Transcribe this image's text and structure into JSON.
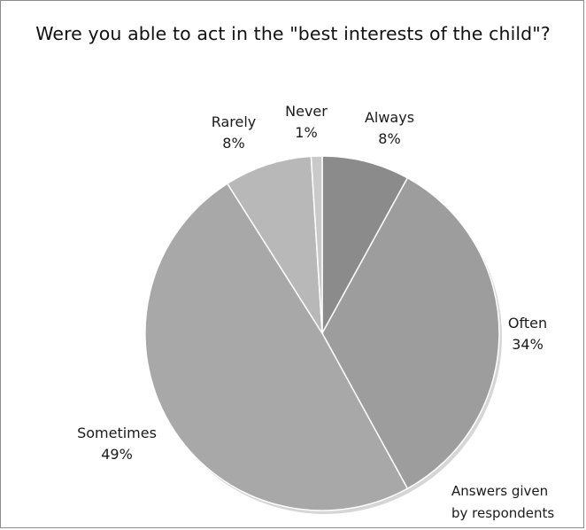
{
  "chart_data": {
    "type": "pie",
    "title": "Were you able to act in the \"best interests of the child\"?",
    "slices": [
      {
        "label": "Always",
        "value": 8,
        "value_label": "8%",
        "color": "#8b8b8b"
      },
      {
        "label": "Often",
        "value": 34,
        "value_label": "34%",
        "color": "#9d9d9d"
      },
      {
        "label": "Sometimes",
        "value": 49,
        "value_label": "49%",
        "color": "#a8a8a8"
      },
      {
        "label": "Rarely",
        "value": 8,
        "value_label": "8%",
        "color": "#b8b8b8"
      },
      {
        "label": "Never",
        "value": 1,
        "value_label": "1%",
        "color": "#c9c9c9"
      }
    ],
    "start": "12 o'clock",
    "direction": "clockwise",
    "note": [
      "Answers given",
      "by respondents"
    ]
  }
}
